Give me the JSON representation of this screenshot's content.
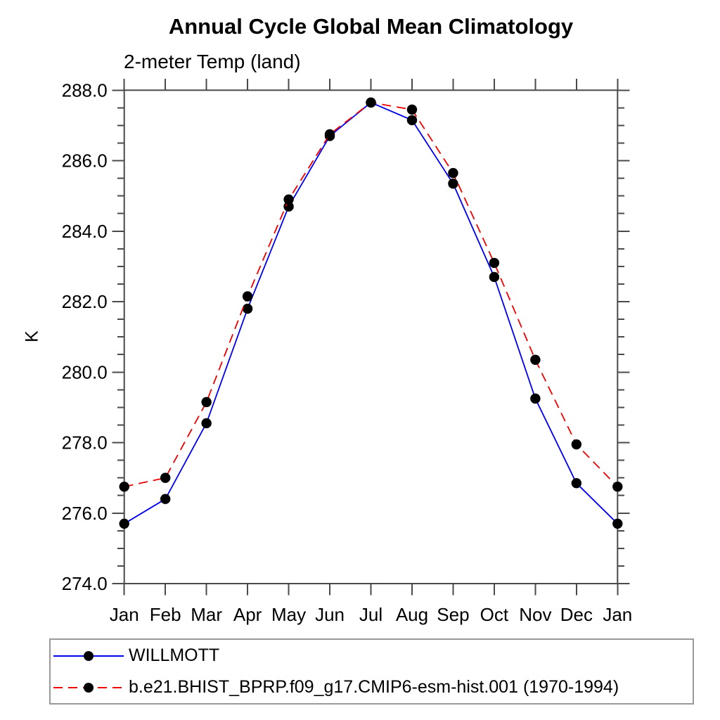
{
  "page": {
    "background_color": "#ffffff",
    "text_color": "#000000"
  },
  "chart_data": {
    "type": "line",
    "title": "Annual Cycle Global Mean Climatology",
    "subtitle": "2-meter Temp (land)",
    "xlabel": "",
    "ylabel": "K",
    "categories": [
      "Jan",
      "Feb",
      "Mar",
      "Apr",
      "May",
      "Jun",
      "Jul",
      "Aug",
      "Sep",
      "Oct",
      "Nov",
      "Dec",
      "Jan"
    ],
    "ylim": [
      274.0,
      288.0
    ],
    "ytick_major_step": 2.0,
    "ytick_minor_step": 0.5,
    "ytick_labels": [
      "274.0",
      "276.0",
      "278.0",
      "280.0",
      "282.0",
      "284.0",
      "286.0",
      "288.0"
    ],
    "grid": false,
    "axis_color": "#4a4a4a",
    "legend_position": "bottom-left framed box below plot",
    "series": [
      {
        "name": "WILLMOTT",
        "color": "#0000ee",
        "style": "solid",
        "marker": "filled-circle",
        "marker_color": "#000000",
        "values": [
          275.7,
          276.4,
          278.55,
          281.8,
          284.7,
          286.7,
          287.65,
          287.15,
          285.35,
          282.7,
          279.25,
          276.85,
          275.7
        ]
      },
      {
        "name": "b.e21.BHIST_BPRP.f09_g17.CMIP6-esm-hist.001 (1970-1994)",
        "color": "#ee0000",
        "style": "dashed",
        "marker": "filled-circle",
        "marker_color": "#000000",
        "values": [
          276.75,
          277.0,
          279.15,
          282.15,
          284.9,
          286.75,
          287.65,
          287.45,
          285.65,
          283.1,
          280.35,
          277.95,
          276.75
        ]
      }
    ]
  }
}
